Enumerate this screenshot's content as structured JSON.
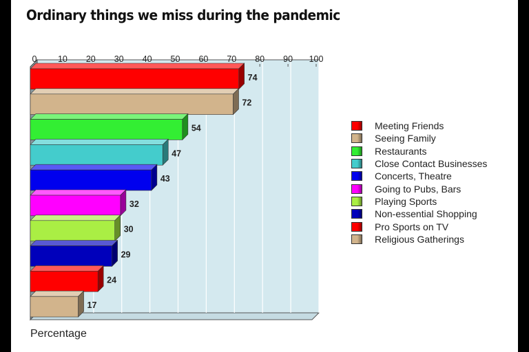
{
  "chart_data": {
    "type": "bar",
    "orientation": "horizontal",
    "title": "Ordinary things we miss during the pandemic",
    "xlabel": "Percentage",
    "ylabel": "",
    "xlim": [
      0,
      100
    ],
    "ticks": [
      0,
      10,
      20,
      30,
      40,
      50,
      60,
      70,
      80,
      90,
      100
    ],
    "grid": true,
    "style": "3d",
    "legend_position": "right",
    "categories": [
      "Meeting Friends",
      "Seeing Family",
      "Restaurants",
      "Close Contact Businesses",
      "Concerts, Theatre",
      "Going to Pubs, Bars",
      "Playing Sports",
      "Non-essential Shopping",
      "Pro Sports on TV",
      "Religious Gatherings"
    ],
    "values": [
      74,
      72,
      54,
      47,
      43,
      32,
      30,
      29,
      24,
      17
    ],
    "colors": [
      "#ff0000",
      "#d2b48c",
      "#33ee33",
      "#44cccc",
      "#0000ee",
      "#ff00ff",
      "#aaee44",
      "#0000bb",
      "#ff0000",
      "#d2b48c"
    ]
  }
}
